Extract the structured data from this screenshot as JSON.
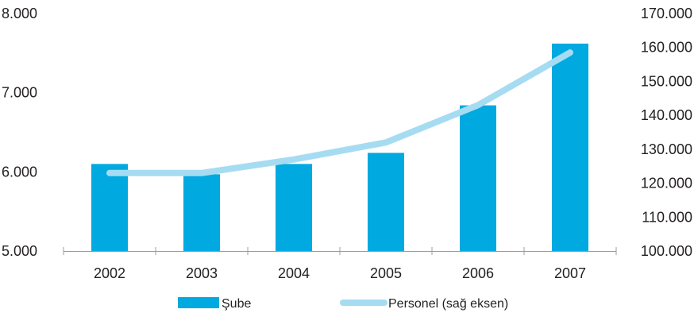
{
  "chart_data": {
    "type": "bar",
    "categories": [
      "2002",
      "2003",
      "2004",
      "2005",
      "2006",
      "2007"
    ],
    "series": [
      {
        "name": "Şube",
        "type": "bar",
        "axis": "left",
        "color": "#00a9e0",
        "values": [
          6100,
          5970,
          6100,
          6240,
          6840,
          7620
        ]
      },
      {
        "name": "Personel (sağ eksen)",
        "type": "line",
        "axis": "right",
        "color": "#a6dcf2",
        "values": [
          123000,
          123000,
          127000,
          132000,
          143000,
          158500
        ]
      }
    ],
    "y_left": {
      "range": [
        5000,
        8000
      ],
      "ticks": [
        "5.000",
        "6.000",
        "7.000",
        "8.000"
      ]
    },
    "y_right": {
      "range": [
        100000,
        170000
      ],
      "ticks": [
        "100.000",
        "110.000",
        "120.000",
        "130.000",
        "140.000",
        "150.000",
        "160.000",
        "170.000"
      ]
    },
    "legend": {
      "position": "bottom"
    },
    "grid": false
  }
}
